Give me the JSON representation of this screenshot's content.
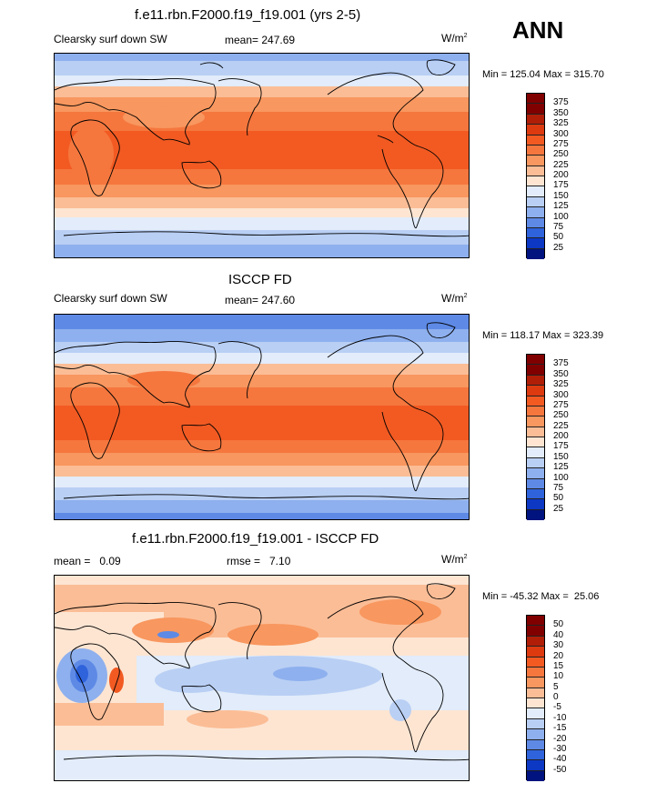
{
  "ann_label": "ANN",
  "panels": [
    {
      "title": "f.e11.rbn.F2000.f19_f19.001 (yrs 2-5)",
      "left_label": "Clearsky surf down SW",
      "center_label": "mean= 247.69",
      "units": "W/m",
      "units_sup": "2",
      "minmax": "Min = 125.04 Max = 315.70",
      "colorbar_labels": [
        "375",
        "350",
        "325",
        "300",
        "275",
        "250",
        "225",
        "200",
        "175",
        "150",
        "125",
        "100",
        "75",
        "50",
        "25"
      ]
    },
    {
      "title": "ISCCP FD",
      "left_label": "Clearsky surf down SW",
      "center_label": "mean= 247.60",
      "units": "W/m",
      "units_sup": "2",
      "minmax": "Min = 118.17 Max = 323.39",
      "colorbar_labels": [
        "375",
        "350",
        "325",
        "300",
        "275",
        "250",
        "225",
        "200",
        "175",
        "150",
        "125",
        "100",
        "75",
        "50",
        "25"
      ]
    },
    {
      "title": "f.e11.rbn.F2000.f19_f19.001 - ISCCP FD",
      "left_label": "mean =   0.09",
      "center_label": "rmse =   7.10",
      "units": "W/m",
      "units_sup": "2",
      "minmax": "Min = -45.32 Max =  25.06",
      "colorbar_labels": [
        "50",
        "40",
        "30",
        "20",
        "15",
        "10",
        "5",
        "0",
        "-5",
        "-10",
        "-15",
        "-20",
        "-30",
        "-40",
        "-50"
      ]
    }
  ],
  "colors": {
    "abs_scale": [
      "#800000",
      "#b01e08",
      "#dd3a10",
      "#f25a22",
      "#f5773e",
      "#f8975f",
      "#fbbd96",
      "#fde5d2",
      "#e2ecfa",
      "#b9cff4",
      "#8eb0ee",
      "#5e8ae6",
      "#2f63dc",
      "#0c38c4",
      "#00137e"
    ],
    "diff_scale": [
      "#800000",
      "#b01e08",
      "#dd3a10",
      "#f25a22",
      "#f5773e",
      "#f8975f",
      "#fbbd96",
      "#fde5d2",
      "#e2ecfa",
      "#b9cff4",
      "#8eb0ee",
      "#5e8ae6",
      "#2f63dc",
      "#0c38c4",
      "#00137e"
    ]
  }
}
